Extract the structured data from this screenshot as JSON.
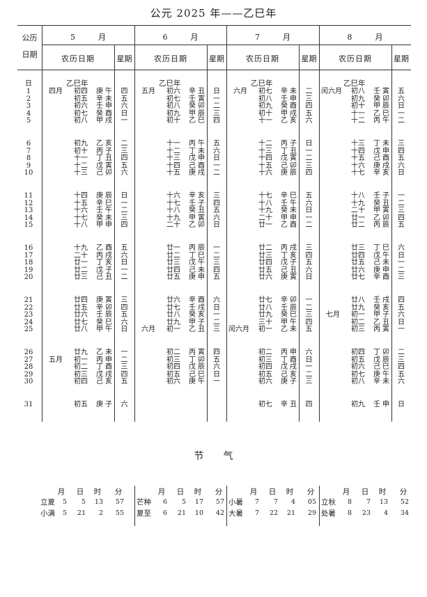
{
  "title": "公元 2025 年——乙巳年",
  "header": {
    "solar_col_line1": "公历",
    "solar_col_line2": "日期",
    "lunar_label": "农历日期",
    "weekday_label": "星期",
    "month_suffix": "月",
    "day_label": "日"
  },
  "year_label": "乙巳年",
  "solar_days": [
    1,
    2,
    3,
    4,
    5,
    6,
    7,
    8,
    9,
    10,
    11,
    12,
    13,
    14,
    15,
    16,
    17,
    18,
    19,
    20,
    21,
    22,
    23,
    24,
    25,
    26,
    27,
    28,
    29,
    30,
    31
  ],
  "months": [
    {
      "month": "5",
      "lunar_month_marks": [
        {
          "day": 1,
          "label": "四月"
        },
        {
          "day": 27,
          "label": "五月"
        }
      ],
      "lunar_days": [
        "初四",
        "初五",
        "初六",
        "初七",
        "初八",
        "初九",
        "初十",
        "十一",
        "十二",
        "十三",
        "十四",
        "十五",
        "十六",
        "十七",
        "十八",
        "十九",
        "二十",
        "廿一",
        "廿二",
        "廿三",
        "廿四",
        "廿五",
        "廿六",
        "廿七",
        "廿八",
        "廿九",
        "初一",
        "初二",
        "初三",
        "初四",
        "初五"
      ],
      "ganzhi": [
        "庚午",
        "辛未",
        "壬申",
        "癸酉",
        "甲戌",
        "乙亥",
        "丙子",
        "丁丑",
        "戊寅",
        "己卯",
        "庚辰",
        "辛巳",
        "壬午",
        "癸未",
        "甲申",
        "乙酉",
        "丙戌",
        "丁亥",
        "戊子",
        "己丑",
        "庚寅",
        "辛卯",
        "壬辰",
        "癸巳",
        "甲午",
        "乙未",
        "丙申",
        "丁酉",
        "戊戌",
        "己亥",
        "庚子"
      ],
      "weekdays": [
        "四",
        "五",
        "六",
        "日",
        "一",
        "二",
        "三",
        "四",
        "五",
        "六",
        "日",
        "一",
        "二",
        "三",
        "四",
        "五",
        "六",
        "日",
        "一",
        "二",
        "三",
        "四",
        "五",
        "六",
        "日",
        "一",
        "二",
        "三",
        "四",
        "五",
        "六"
      ]
    },
    {
      "month": "6",
      "lunar_month_marks": [
        {
          "day": 1,
          "label": "五月"
        },
        {
          "day": 25,
          "label": "六月"
        }
      ],
      "lunar_days": [
        "初六",
        "初七",
        "初八",
        "初九",
        "初十",
        "十一",
        "十二",
        "十三",
        "十四",
        "十五",
        "十六",
        "十七",
        "十八",
        "十九",
        "二十",
        "廿一",
        "廿二",
        "廿三",
        "廿四",
        "廿五",
        "廿六",
        "廿七",
        "廿八",
        "廿九",
        "初一",
        "初二",
        "初三",
        "初四",
        "初五",
        "初六"
      ],
      "ganzhi": [
        "辛丑",
        "壬寅",
        "癸卯",
        "甲辰",
        "乙巳",
        "丙午",
        "丁未",
        "戊申",
        "己酉",
        "庚戌",
        "辛亥",
        "壬子",
        "癸丑",
        "甲寅",
        "乙卯",
        "丙辰",
        "丁巳",
        "戊午",
        "己未",
        "庚申",
        "辛酉",
        "壬戌",
        "癸亥",
        "甲子",
        "乙丑",
        "丙寅",
        "丁卯",
        "戊辰",
        "己巳",
        "庚午"
      ],
      "weekdays": [
        "日",
        "一",
        "二",
        "三",
        "四",
        "五",
        "六",
        "日",
        "一",
        "二",
        "三",
        "四",
        "五",
        "六",
        "日",
        "一",
        "二",
        "三",
        "四",
        "五",
        "六",
        "日",
        "一",
        "二",
        "三",
        "四",
        "五",
        "六",
        "日",
        "一"
      ]
    },
    {
      "month": "7",
      "lunar_month_marks": [
        {
          "day": 1,
          "label": "六月"
        },
        {
          "day": 25,
          "label": "闰六月"
        }
      ],
      "lunar_days": [
        "初七",
        "初八",
        "初九",
        "初十",
        "十一",
        "十二",
        "十三",
        "十四",
        "十五",
        "十六",
        "十七",
        "十八",
        "十九",
        "二十",
        "廿一",
        "廿二",
        "廿三",
        "廿四",
        "廿五",
        "廿六",
        "廿七",
        "廿八",
        "廿九",
        "三十",
        "初一",
        "初二",
        "初三",
        "初四",
        "初五",
        "初六",
        "初七"
      ],
      "ganzhi": [
        "辛未",
        "壬申",
        "癸酉",
        "甲戌",
        "乙亥",
        "丙子",
        "丁丑",
        "戊寅",
        "己卯",
        "庚辰",
        "辛巳",
        "壬午",
        "癸未",
        "甲申",
        "乙酉",
        "丙戌",
        "丁亥",
        "戊子",
        "己丑",
        "庚寅",
        "辛卯",
        "壬辰",
        "癸巳",
        "甲午",
        "乙未",
        "丙申",
        "丁酉",
        "戊戌",
        "己亥",
        "庚子",
        "辛丑"
      ],
      "weekdays": [
        "二",
        "三",
        "四",
        "五",
        "六",
        "日",
        "一",
        "二",
        "三",
        "四",
        "五",
        "六",
        "日",
        "一",
        "二",
        "三",
        "四",
        "五",
        "六",
        "日",
        "一",
        "二",
        "三",
        "四",
        "五",
        "六",
        "日",
        "一",
        "二",
        "三",
        "四"
      ]
    },
    {
      "month": "8",
      "lunar_month_marks": [
        {
          "day": 1,
          "label": "闰六月"
        },
        {
          "day": 23,
          "label": "七月"
        }
      ],
      "lunar_days": [
        "初八",
        "初九",
        "初十",
        "十一",
        "十二",
        "十三",
        "十四",
        "十五",
        "十六",
        "十七",
        "十八",
        "十九",
        "二十",
        "廿一",
        "廿二",
        "廿三",
        "廿四",
        "廿五",
        "廿六",
        "廿七",
        "廿八",
        "廿九",
        "初一",
        "初二",
        "初三",
        "初四",
        "初五",
        "初六",
        "初七",
        "初八",
        "初九"
      ],
      "ganzhi": [
        "壬寅",
        "癸卯",
        "甲辰",
        "乙巳",
        "丙午",
        "丁未",
        "戊申",
        "己酉",
        "庚戌",
        "辛亥",
        "壬子",
        "癸丑",
        "甲寅",
        "乙卯",
        "丙辰",
        "丁巳",
        "戊午",
        "己未",
        "庚申",
        "辛酉",
        "壬戌",
        "癸亥",
        "甲子",
        "乙丑",
        "丙寅",
        "丁卯",
        "戊辰",
        "己巳",
        "庚午",
        "辛未",
        "壬申"
      ],
      "weekdays": [
        "五",
        "六",
        "日",
        "一",
        "二",
        "三",
        "四",
        "五",
        "六",
        "日",
        "一",
        "二",
        "三",
        "四",
        "五",
        "六",
        "日",
        "一",
        "二",
        "三",
        "四",
        "五",
        "六",
        "日",
        "一",
        "二",
        "三",
        "四",
        "五",
        "六",
        "日"
      ]
    }
  ],
  "solar_terms": {
    "title": "节　　气",
    "columns": [
      "月",
      "日",
      "时",
      "分"
    ],
    "groups": [
      [
        {
          "name": "立夏",
          "month": "5",
          "day": "5",
          "hour": "13",
          "minute": "57"
        },
        {
          "name": "小满",
          "month": "5",
          "day": "21",
          "hour": "2",
          "minute": "55"
        }
      ],
      [
        {
          "name": "芒种",
          "month": "6",
          "day": "5",
          "hour": "17",
          "minute": "57"
        },
        {
          "name": "夏至",
          "month": "6",
          "day": "21",
          "hour": "10",
          "minute": "42"
        }
      ],
      [
        {
          "name": "小暑",
          "month": "7",
          "day": "7",
          "hour": "4",
          "minute": "05"
        },
        {
          "name": "大暑",
          "month": "7",
          "day": "22",
          "hour": "21",
          "minute": "29"
        }
      ],
      [
        {
          "name": "立秋",
          "month": "8",
          "day": "7",
          "hour": "13",
          "minute": "52"
        },
        {
          "name": "处暑",
          "month": "8",
          "day": "23",
          "hour": "4",
          "minute": "34"
        }
      ]
    ]
  }
}
